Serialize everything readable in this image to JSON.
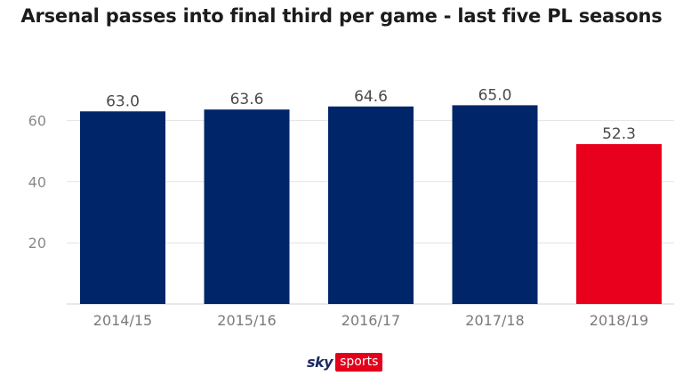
{
  "chart_data": {
    "type": "bar",
    "title": "Arsenal passes into final third per game - last five PL seasons",
    "categories": [
      "2014/15",
      "2015/16",
      "2016/17",
      "2017/18",
      "2018/19"
    ],
    "values": [
      63.0,
      63.6,
      64.6,
      65.0,
      52.3
    ],
    "value_labels": [
      "63.0",
      "63.6",
      "64.6",
      "65.0",
      "52.3"
    ],
    "colors": [
      "#002669",
      "#002669",
      "#002669",
      "#002669",
      "#e8001c"
    ],
    "yticks": [
      20,
      40,
      60
    ],
    "ylim": [
      0,
      75
    ],
    "grid": true,
    "xlabel": "",
    "ylabel": ""
  },
  "logo": {
    "sky": "sky",
    "sports": "sports"
  }
}
